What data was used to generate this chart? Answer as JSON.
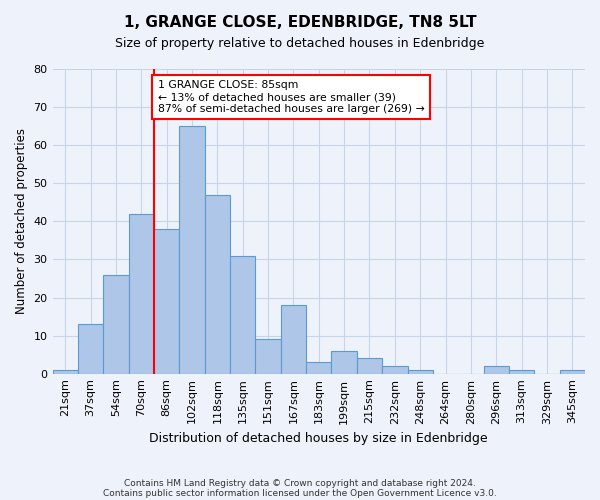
{
  "title_line1": "1, GRANGE CLOSE, EDENBRIDGE, TN8 5LT",
  "title_line2": "Size of property relative to detached houses in Edenbridge",
  "xlabel": "Distribution of detached houses by size in Edenbridge",
  "ylabel": "Number of detached properties",
  "footer_line1": "Contains HM Land Registry data © Crown copyright and database right 2024.",
  "footer_line2": "Contains public sector information licensed under the Open Government Licence v3.0.",
  "bin_labels": [
    "21sqm",
    "37sqm",
    "54sqm",
    "70sqm",
    "86sqm",
    "102sqm",
    "118sqm",
    "135sqm",
    "151sqm",
    "167sqm",
    "183sqm",
    "199sqm",
    "215sqm",
    "232sqm",
    "248sqm",
    "264sqm",
    "280sqm",
    "296sqm",
    "313sqm",
    "329sqm",
    "345sqm"
  ],
  "bar_values": [
    1,
    13,
    26,
    42,
    38,
    65,
    47,
    31,
    9,
    18,
    3,
    6,
    4,
    2,
    1,
    0,
    0,
    2,
    1,
    0,
    1
  ],
  "bar_color": "#aec6e8",
  "bar_edgecolor": "#5b9bd5",
  "vline_x": 4.0,
  "annotation_text": "1 GRANGE CLOSE: 85sqm\n← 13% of detached houses are smaller (39)\n87% of semi-detached houses are larger (269) →",
  "annotation_box_color": "white",
  "annotation_box_edgecolor": "red",
  "vline_color": "red",
  "ylim": [
    0,
    80
  ],
  "yticks": [
    0,
    10,
    20,
    30,
    40,
    50,
    60,
    70,
    80
  ],
  "grid_color": "#c8d4e8",
  "background_color": "#eef2fb"
}
